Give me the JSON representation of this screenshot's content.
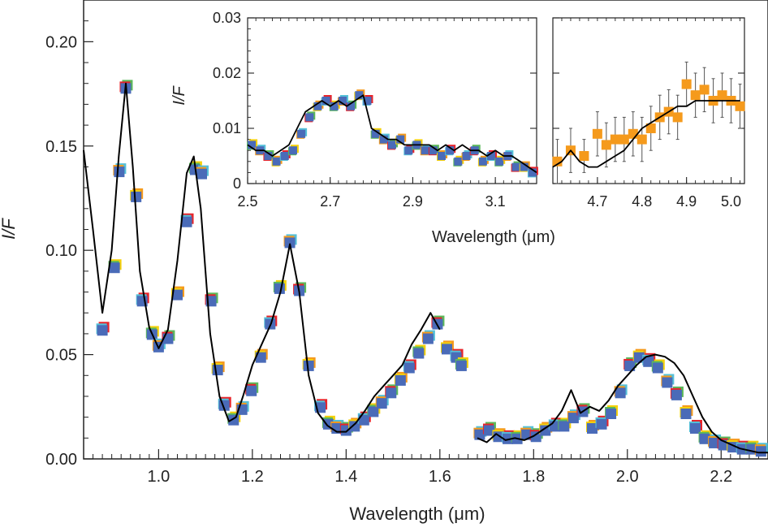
{
  "chart_data": [
    {
      "type": "scatter",
      "xlabel": "Wavelength (μm)",
      "ylabel": "I/F",
      "xlim": [
        0.84,
        2.3
      ],
      "ylim": [
        0,
        0.22
      ],
      "xticks": [
        1.0,
        1.2,
        1.4,
        1.6,
        1.8,
        2.0,
        2.2
      ],
      "xtick_labels": [
        "1.0",
        "1.2",
        "1.4",
        "1.6",
        "1.8",
        "2.0",
        "2.2"
      ],
      "yticks": [
        0,
        0.05,
        0.1,
        0.15,
        0.2
      ],
      "ytick_labels": [
        "0.00",
        "0.05",
        "0.10",
        "0.15",
        "0.20"
      ],
      "grid": false,
      "colors": {
        "points": "#4a6bb8",
        "edge_colors": [
          "#e8242a",
          "#f5d10a",
          "#55c0d8",
          "#5bb85a",
          "#f59a1c"
        ],
        "model": "#000000"
      },
      "series": [
        {
          "kind": "points",
          "x": [
            0.88,
            0.906,
            0.916,
            0.93,
            0.952,
            0.965,
            0.986,
            1.0,
            1.02,
            1.04,
            1.06,
            1.078,
            1.092,
            1.112,
            1.126,
            1.14,
            1.16,
            1.178,
            1.198,
            1.218,
            1.238,
            1.258,
            1.28,
            1.3,
            1.32,
            1.345,
            1.362,
            1.38,
            1.4,
            1.418,
            1.438,
            1.458,
            1.476,
            1.496,
            1.516,
            1.535,
            1.555,
            1.575,
            1.595,
            1.615,
            1.635,
            1.646,
            1.685,
            1.705,
            1.725,
            1.745,
            1.765,
            1.785,
            1.805,
            1.825,
            1.845,
            1.865,
            1.885,
            1.905,
            1.925,
            1.945,
            1.965,
            1.985,
            2.005,
            2.025,
            2.045,
            2.065,
            2.085,
            2.105,
            2.125,
            2.145,
            2.165,
            2.185,
            2.205,
            2.225,
            2.245,
            2.265,
            2.285
          ],
          "y": [
            0.062,
            0.092,
            0.138,
            0.178,
            0.126,
            0.076,
            0.06,
            0.054,
            0.058,
            0.079,
            0.114,
            0.139,
            0.137,
            0.076,
            0.043,
            0.026,
            0.019,
            0.024,
            0.033,
            0.049,
            0.065,
            0.082,
            0.104,
            0.081,
            0.045,
            0.025,
            0.017,
            0.015,
            0.014,
            0.016,
            0.019,
            0.023,
            0.027,
            0.032,
            0.038,
            0.044,
            0.051,
            0.058,
            0.065,
            0.053,
            0.049,
            0.045,
            0.012,
            0.014,
            0.011,
            0.01,
            0.01,
            0.012,
            0.011,
            0.014,
            0.016,
            0.016,
            0.02,
            0.023,
            0.015,
            0.017,
            0.022,
            0.032,
            0.045,
            0.049,
            0.047,
            0.044,
            0.037,
            0.031,
            0.022,
            0.015,
            0.01,
            0.008,
            0.007,
            0.006,
            0.005,
            0.005,
            0.004
          ]
        },
        {
          "kind": "model",
          "x": [
            0.84,
            0.86,
            0.88,
            0.9,
            0.915,
            0.93,
            0.945,
            0.96,
            0.98,
            1.0,
            1.02,
            1.04,
            1.06,
            1.075,
            1.09,
            1.11,
            1.13,
            1.15,
            1.165,
            1.18,
            1.2,
            1.22,
            1.24,
            1.26,
            1.28,
            1.3,
            1.32,
            1.34,
            1.36,
            1.38,
            1.4,
            1.42,
            1.44,
            1.46,
            1.48,
            1.5,
            1.52,
            1.54,
            1.56,
            1.58,
            1.6,
            1.68,
            1.7,
            1.72,
            1.74,
            1.76,
            1.78,
            1.8,
            1.82,
            1.84,
            1.86,
            1.88,
            1.9,
            1.92,
            1.94,
            1.96,
            1.98,
            2.0,
            2.02,
            2.04,
            2.06,
            2.08,
            2.1,
            2.12,
            2.14,
            2.16,
            2.18,
            2.2,
            2.22,
            2.24,
            2.26,
            2.28,
            2.3
          ],
          "y": [
            0.148,
            0.11,
            0.07,
            0.1,
            0.145,
            0.18,
            0.14,
            0.09,
            0.063,
            0.053,
            0.062,
            0.095,
            0.137,
            0.145,
            0.12,
            0.06,
            0.03,
            0.018,
            0.02,
            0.03,
            0.045,
            0.055,
            0.065,
            0.08,
            0.103,
            0.08,
            0.04,
            0.022,
            0.016,
            0.013,
            0.013,
            0.017,
            0.023,
            0.03,
            0.035,
            0.04,
            0.045,
            0.055,
            0.062,
            0.07,
            0.062,
            0.01,
            0.008,
            0.012,
            0.009,
            0.01,
            0.009,
            0.011,
            0.014,
            0.017,
            0.023,
            0.033,
            0.022,
            0.025,
            0.023,
            0.028,
            0.035,
            0.04,
            0.045,
            0.049,
            0.05,
            0.049,
            0.046,
            0.04,
            0.03,
            0.02,
            0.013,
            0.009,
            0.007,
            0.005,
            0.004,
            0.003,
            0.003
          ]
        }
      ]
    },
    {
      "type": "scatter",
      "xlabel": "Wavelength (μm)",
      "ylabel": "I/F",
      "xlim": [
        2.5,
        3.2
      ],
      "ylim": [
        0,
        0.03
      ],
      "xticks": [
        2.5,
        2.7,
        2.9,
        3.1
      ],
      "xtick_labels": [
        "2.5",
        "2.7",
        "2.9",
        "3.1"
      ],
      "yticks": [
        0,
        0.01,
        0.02,
        0.03
      ],
      "ytick_labels": [
        "0",
        "0.01",
        "0.02",
        "0.03"
      ],
      "series": [
        {
          "kind": "points",
          "x": [
            2.51,
            2.53,
            2.55,
            2.57,
            2.59,
            2.61,
            2.63,
            2.65,
            2.67,
            2.69,
            2.71,
            2.73,
            2.75,
            2.77,
            2.79,
            2.81,
            2.83,
            2.85,
            2.87,
            2.89,
            2.91,
            2.93,
            2.95,
            2.97,
            2.99,
            3.01,
            3.03,
            3.05,
            3.07,
            3.09,
            3.11,
            3.13,
            3.15,
            3.17,
            3.19
          ],
          "y": [
            0.007,
            0.006,
            0.005,
            0.004,
            0.005,
            0.006,
            0.009,
            0.012,
            0.014,
            0.015,
            0.014,
            0.015,
            0.014,
            0.016,
            0.015,
            0.009,
            0.008,
            0.007,
            0.008,
            0.006,
            0.007,
            0.006,
            0.006,
            0.005,
            0.006,
            0.004,
            0.005,
            0.006,
            0.004,
            0.005,
            0.004,
            0.005,
            0.003,
            0.003,
            0.002
          ]
        },
        {
          "kind": "model",
          "x": [
            2.5,
            2.52,
            2.54,
            2.56,
            2.58,
            2.6,
            2.62,
            2.64,
            2.66,
            2.68,
            2.7,
            2.72,
            2.74,
            2.76,
            2.78,
            2.8,
            2.82,
            2.84,
            2.86,
            2.88,
            2.9,
            2.92,
            2.94,
            2.96,
            2.98,
            3.0,
            3.02,
            3.04,
            3.06,
            3.08,
            3.1,
            3.12,
            3.14,
            3.16,
            3.18,
            3.2
          ],
          "y": [
            0.007,
            0.006,
            0.006,
            0.005,
            0.006,
            0.007,
            0.01,
            0.013,
            0.014,
            0.015,
            0.014,
            0.015,
            0.014,
            0.015,
            0.016,
            0.01,
            0.009,
            0.008,
            0.008,
            0.007,
            0.007,
            0.007,
            0.007,
            0.006,
            0.007,
            0.006,
            0.007,
            0.006,
            0.006,
            0.005,
            0.006,
            0.005,
            0.005,
            0.004,
            0.003,
            0.002
          ]
        }
      ]
    },
    {
      "type": "scatter",
      "xlim": [
        4.6,
        5.03
      ],
      "ylim": [
        0,
        0.03
      ],
      "xticks": [
        4.7,
        4.8,
        4.9,
        5.0
      ],
      "xtick_labels": [
        "4.7",
        "4.8",
        "4.9",
        "5.0"
      ],
      "colors": {
        "points": "#f59a1c",
        "errorbar": "#555555",
        "model": "#000000"
      },
      "series": [
        {
          "kind": "points",
          "x": [
            4.61,
            4.64,
            4.67,
            4.7,
            4.72,
            4.74,
            4.76,
            4.78,
            4.8,
            4.82,
            4.84,
            4.86,
            4.88,
            4.9,
            4.92,
            4.94,
            4.96,
            4.98,
            5.0,
            5.02
          ],
          "y": [
            0.004,
            0.006,
            0.005,
            0.009,
            0.007,
            0.008,
            0.008,
            0.009,
            0.008,
            0.01,
            0.012,
            0.013,
            0.012,
            0.018,
            0.016,
            0.017,
            0.015,
            0.016,
            0.015,
            0.014
          ],
          "error": [
            0.004,
            0.004,
            0.003,
            0.004,
            0.004,
            0.004,
            0.004,
            0.004,
            0.004,
            0.004,
            0.004,
            0.004,
            0.004,
            0.004,
            0.004,
            0.004,
            0.004,
            0.004,
            0.004,
            0.004
          ]
        },
        {
          "kind": "model",
          "x": [
            4.6,
            4.62,
            4.64,
            4.66,
            4.68,
            4.7,
            4.72,
            4.74,
            4.76,
            4.78,
            4.8,
            4.82,
            4.84,
            4.86,
            4.88,
            4.9,
            4.92,
            4.94,
            4.96,
            4.98,
            5.0,
            5.02
          ],
          "y": [
            0.003,
            0.004,
            0.006,
            0.004,
            0.003,
            0.003,
            0.004,
            0.005,
            0.006,
            0.008,
            0.01,
            0.011,
            0.012,
            0.013,
            0.014,
            0.014,
            0.015,
            0.015,
            0.015,
            0.015,
            0.015,
            0.015
          ]
        }
      ]
    }
  ]
}
